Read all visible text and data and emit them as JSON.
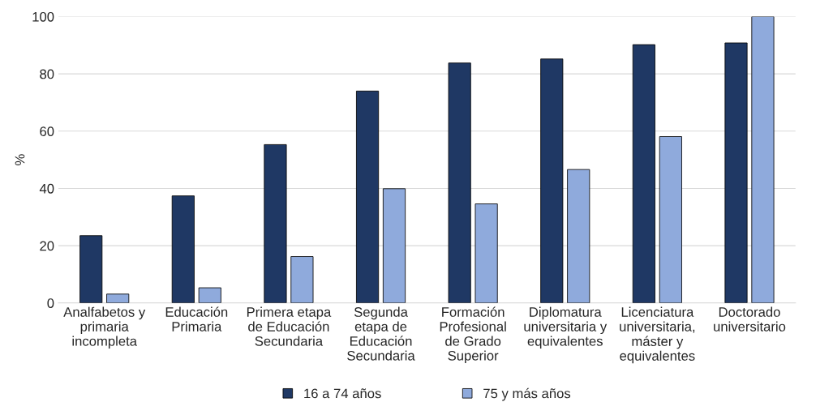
{
  "chart_data": {
    "type": "bar",
    "ylabel": "%",
    "categories": [
      "Analfabetos y\nprimaria\nincompleta",
      "Educación\nPrimaria",
      "Primera etapa\nde Educación\nSecundaria",
      "Segunda\netapa de\nEducación\nSecundaria",
      "Formación\nProfesional\nde Grado\nSuperior",
      "Diplomatura\nuniversitaria y\nequivalentes",
      "Licenciatura\nuniversitaria,\nmáster y\nequivalentes",
      "Doctorado\nuniversitario"
    ],
    "series": [
      {
        "name": "16 a 74 años",
        "color": "#1f3864",
        "values": [
          23.5,
          37.4,
          55.3,
          74.0,
          83.8,
          85.2,
          90.2,
          90.8
        ]
      },
      {
        "name": "75 y más años",
        "color": "#8faadc",
        "values": [
          3.1,
          5.3,
          16.2,
          39.9,
          34.6,
          46.6,
          58.1,
          100
        ]
      }
    ],
    "ylim": [
      0,
      100
    ],
    "yticks": [
      0,
      20,
      40,
      60,
      80,
      100
    ],
    "grid": "y",
    "legend": "bottom"
  }
}
